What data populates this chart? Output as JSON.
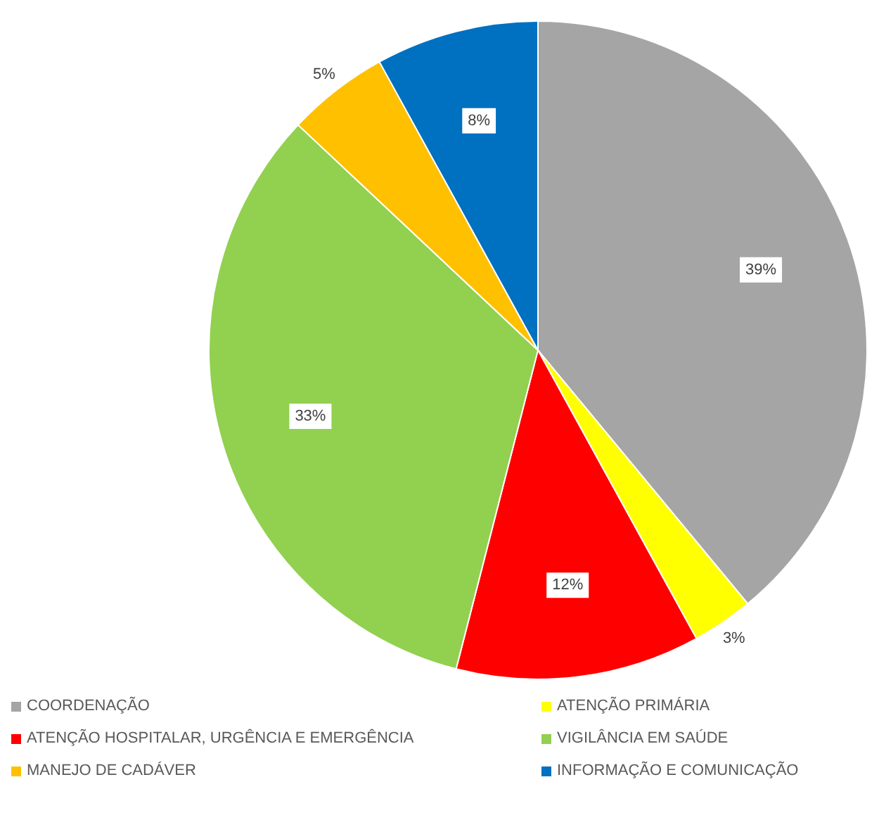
{
  "chart_data": {
    "type": "pie",
    "categories": [
      "COORDENAÇÃO",
      "ATENÇÃO PRIMÁRIA",
      "ATENÇÃO HOSPITALAR, URGÊNCIA E EMERGÊNCIA",
      "VIGILÂNCIA EM SAÚDE",
      "MANEJO DE CADÁVER",
      "INFORMAÇÃO E COMUNICAÇÃO"
    ],
    "values": [
      39,
      3,
      12,
      33,
      5,
      8
    ],
    "colors": [
      "#a5a5a5",
      "#ffff00",
      "#ff0000",
      "#92d050",
      "#ffc000",
      "#0070c0"
    ],
    "value_labels": [
      "39%",
      "3%",
      "12%",
      "33%",
      "5%",
      "8%"
    ],
    "legend": "bottom"
  }
}
